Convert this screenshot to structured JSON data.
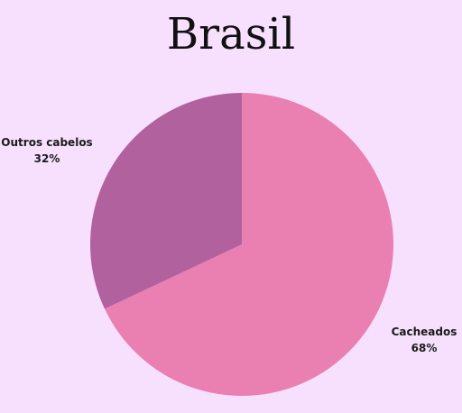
{
  "chart_data": {
    "type": "pie",
    "title": "Brasil",
    "slices": [
      {
        "label": "Cacheados",
        "value": 68,
        "value_label": "68%",
        "color": "#ea7fb1"
      },
      {
        "label": "Outros cabelos",
        "value": 32,
        "value_label": "32%",
        "color": "#b2619f"
      }
    ],
    "background": "#f7e0fd"
  }
}
